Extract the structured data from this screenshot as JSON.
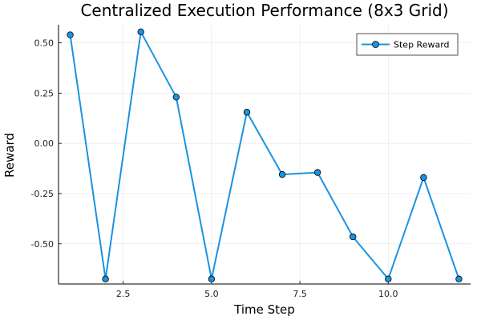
{
  "chart_data": {
    "type": "line",
    "title": "Centralized Execution Performance (8x3 Grid)",
    "xlabel": "Time Step",
    "ylabel": "Reward",
    "xlim": [
      0.67,
      12.33
    ],
    "ylim": [
      -0.7,
      0.59
    ],
    "xticks": [
      2.5,
      5.0,
      7.5,
      10.0
    ],
    "xtick_labels": [
      "2.5",
      "5.0",
      "7.5",
      "10.0"
    ],
    "yticks": [
      -0.5,
      -0.25,
      0.0,
      0.25,
      0.5
    ],
    "ytick_labels": [
      "-0.50",
      "-0.25",
      "0.00",
      "0.25",
      "0.50"
    ],
    "grid": true,
    "legend_position": "top-right",
    "series": [
      {
        "name": "Step Reward",
        "color": "#1a93e0",
        "marker_color": "#1a93e0",
        "x": [
          1,
          2,
          3,
          4,
          5,
          6,
          7,
          8,
          9,
          10,
          11,
          12
        ],
        "y": [
          0.54,
          -0.675,
          0.555,
          0.23,
          -0.675,
          0.155,
          -0.155,
          -0.145,
          -0.465,
          -0.675,
          -0.17,
          -0.675
        ]
      }
    ]
  }
}
